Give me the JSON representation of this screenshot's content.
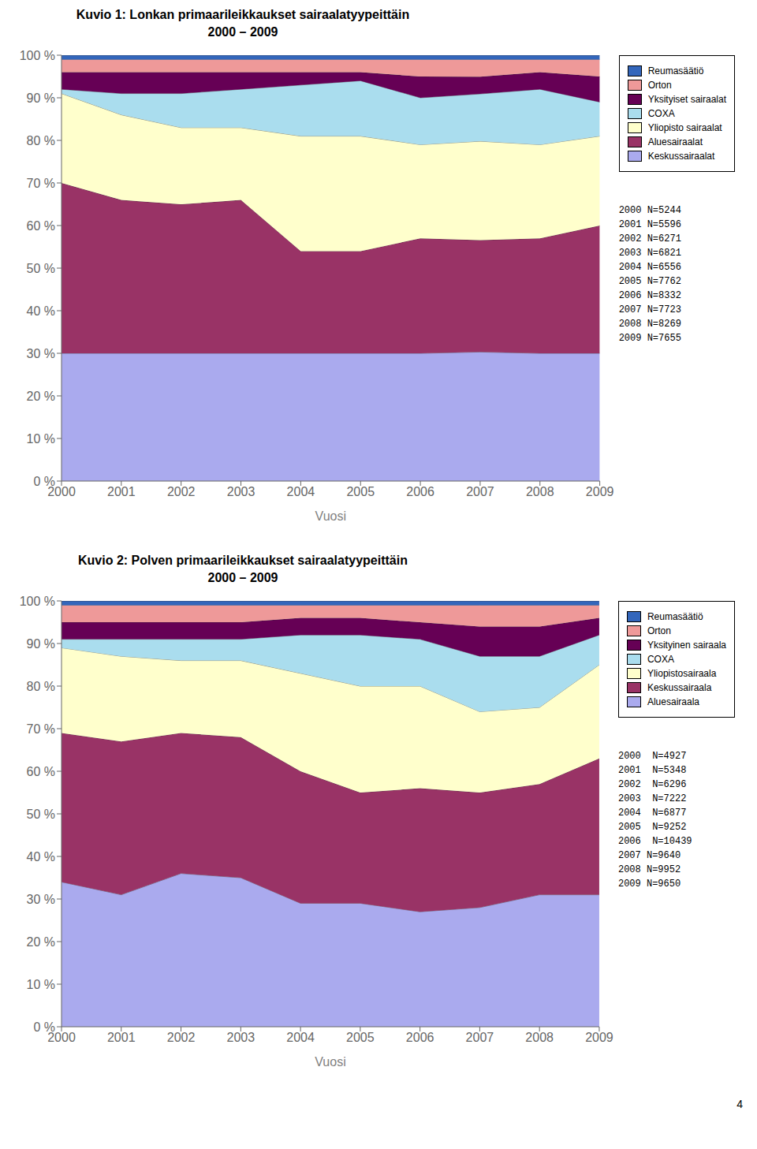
{
  "chart_data": [
    {
      "type": "area",
      "title": "Kuvio  1: Lonkan primaarileikkaukset sairaalatyypeittäin",
      "subtitle": "2000 – 2009",
      "x_label": "Vuosi",
      "x": [
        2000,
        2001,
        2002,
        2003,
        2004,
        2005,
        2006,
        2007,
        2008,
        2009
      ],
      "xlim": [
        2000,
        2009
      ],
      "xticks": [
        2000,
        2001,
        2002,
        2003,
        2004,
        2005,
        2006,
        2007,
        2008,
        2009
      ],
      "ylim": [
        0,
        100
      ],
      "yticks": [
        {
          "value": 0,
          "label": "0 %"
        },
        {
          "value": 10,
          "label": "10 %"
        },
        {
          "value": 20,
          "label": "20 %"
        },
        {
          "value": 30,
          "label": "30 %"
        },
        {
          "value": 40,
          "label": "40 %"
        },
        {
          "value": 50,
          "label": "50 %"
        },
        {
          "value": 60,
          "label": "60 %"
        },
        {
          "value": 70,
          "label": "70 %"
        },
        {
          "value": 80,
          "label": "80 %"
        },
        {
          "value": 90,
          "label": "90 %"
        },
        {
          "value": 100,
          "label": "100 %"
        }
      ],
      "stacked": true,
      "grid": false,
      "legend": "right",
      "annotations": [
        "2000 N=5244",
        "2001 N=5596",
        "2002 N=6271",
        "2003 N=6821",
        "2004 N=6556",
        "2005 N=7762",
        "2006 N=8332",
        "2007 N=7723",
        "2008 N=8269",
        "2009 N=7655"
      ],
      "series": [
        {
          "name": "Keskussairaalat",
          "color": "#aaaaee",
          "values": [
            30,
            30,
            30,
            30,
            30,
            30,
            30,
            30.303030303030305,
            30,
            30
          ]
        },
        {
          "name": "Aluesairaalat",
          "color": "#993366",
          "values": [
            40,
            36,
            35,
            36,
            24,
            24,
            27,
            26.262626262626263,
            27,
            30
          ]
        },
        {
          "name": "Yliopisto sairaalat",
          "color": "#ffffcc",
          "values": [
            21,
            20,
            18,
            17,
            27,
            27,
            22,
            23.232323232323232,
            22,
            21
          ]
        },
        {
          "name": "COXA",
          "color": "#aaddee",
          "values": [
            1,
            5,
            8,
            9,
            12,
            13,
            11,
            11.11111111111111,
            13,
            8
          ]
        },
        {
          "name": "Yksityiset sairaalat",
          "color": "#660055",
          "values": [
            4,
            5,
            5,
            4,
            3,
            2,
            5,
            4.040404040404041,
            4,
            6
          ]
        },
        {
          "name": "Orton",
          "color": "#ee9999",
          "values": [
            3,
            3,
            3,
            3,
            3,
            3,
            4,
            4.040404040404041,
            3,
            4
          ]
        },
        {
          "name": "Reumasäätiö",
          "color": "#3366bb",
          "values": [
            1,
            1,
            1,
            1,
            1,
            1,
            1,
            1.0101010101010102,
            1,
            1
          ]
        }
      ]
    },
    {
      "type": "area",
      "title": "Kuvio 2: Polven primaarileikkaukset sairaalatyypeittäin",
      "subtitle": "2000 – 2009",
      "x_label": "Vuosi",
      "x": [
        2000,
        2001,
        2002,
        2003,
        2004,
        2005,
        2006,
        2007,
        2008,
        2009
      ],
      "xlim": [
        2000,
        2009
      ],
      "xticks": [
        2000,
        2001,
        2002,
        2003,
        2004,
        2005,
        2006,
        2007,
        2008,
        2009
      ],
      "ylim": [
        0,
        100
      ],
      "yticks": [
        {
          "value": 0,
          "label": "0 %"
        },
        {
          "value": 10,
          "label": "10 %"
        },
        {
          "value": 20,
          "label": "20 %"
        },
        {
          "value": 30,
          "label": "30 %"
        },
        {
          "value": 40,
          "label": "40 %"
        },
        {
          "value": 50,
          "label": "50 %"
        },
        {
          "value": 60,
          "label": "60 %"
        },
        {
          "value": 70,
          "label": "70 %"
        },
        {
          "value": 80,
          "label": "80 %"
        },
        {
          "value": 90,
          "label": "90 %"
        },
        {
          "value": 100,
          "label": "100 %"
        }
      ],
      "stacked": true,
      "grid": false,
      "legend": "right",
      "annotations": [
        "2000  N=4927",
        "2001  N=5348",
        "2002  N=6296",
        "2003  N=7222",
        "2004  N=6877",
        "2005  N=9252",
        "2006  N=10439",
        "2007 N=9640",
        "2008 N=9952",
        "2009 N=9650"
      ],
      "series": [
        {
          "name": "Aluesairaala",
          "color": "#aaaaee",
          "values": [
            34,
            31,
            36,
            35,
            29,
            29,
            27,
            28,
            31,
            31
          ]
        },
        {
          "name": "Keskussairaala",
          "color": "#993366",
          "values": [
            35,
            36,
            33,
            33,
            31,
            26,
            29,
            27,
            26,
            32
          ]
        },
        {
          "name": "Yliopistosairaala",
          "color": "#ffffcc",
          "values": [
            20,
            20,
            17,
            18,
            23,
            25,
            24,
            19,
            18,
            22
          ]
        },
        {
          "name": "COXA",
          "color": "#aaddee",
          "values": [
            2,
            4,
            5,
            5,
            9,
            12,
            11,
            13,
            12,
            7
          ]
        },
        {
          "name": "Yksityinen sairaala",
          "color": "#660055",
          "values": [
            4,
            4,
            4,
            4,
            4,
            4,
            4,
            7,
            7,
            4
          ]
        },
        {
          "name": "Orton",
          "color": "#ee9999",
          "values": [
            4,
            4,
            4,
            4,
            3,
            3,
            4,
            5,
            5,
            3
          ]
        },
        {
          "name": "Reumasäätiö",
          "color": "#3366bb",
          "values": [
            1,
            1,
            1,
            1,
            1,
            1,
            1,
            1,
            1,
            1
          ]
        }
      ]
    }
  ],
  "annotations": [
    "4"
  ]
}
